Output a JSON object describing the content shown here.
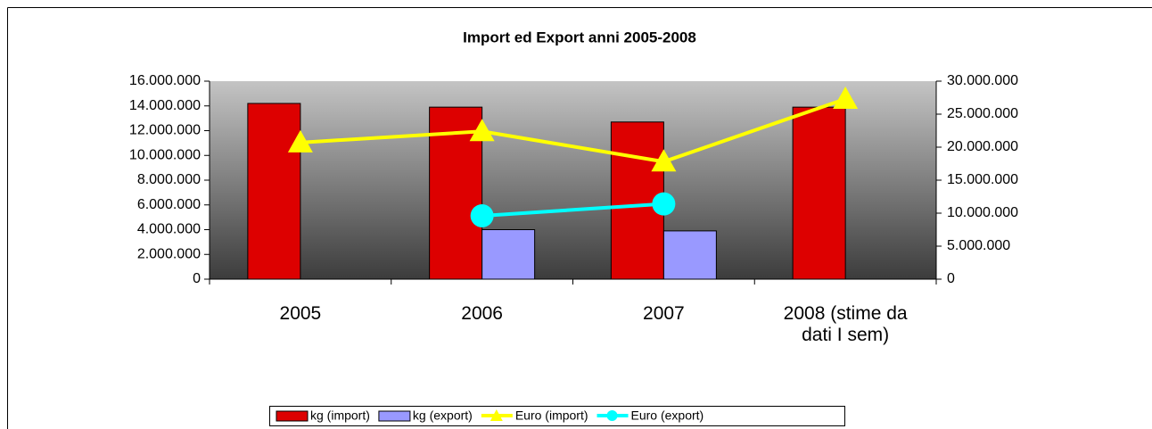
{
  "chart_data": {
    "type": "bar_line",
    "title": "Import ed Export anni 2005-2008",
    "categories": [
      "2005",
      "2006",
      "2007",
      "2008 (stime da dati I sem)"
    ],
    "series": [
      {
        "name": "kg (import)",
        "color": "#dd0000",
        "kind": "bar",
        "values": [
          14200000,
          13900000,
          12700000,
          13900000
        ]
      },
      {
        "name": "kg (export)",
        "color": "#9999ff",
        "kind": "bar",
        "values": [
          null,
          4000000,
          3900000,
          null
        ]
      },
      {
        "name": "Euro (import)",
        "color": "#ffff00",
        "kind": "line",
        "marker": "triangle",
        "axis": "y2",
        "values": [
          20700000,
          22400000,
          17800000,
          27300000
        ]
      },
      {
        "name": "Euro (export)",
        "color": "#00ffff",
        "kind": "line",
        "marker": "circle",
        "axis": "y2",
        "values": [
          null,
          9600000,
          11400000,
          null
        ]
      }
    ],
    "ylim": [
      0,
      16000000
    ],
    "yticks": [
      0,
      {
        "value": 2000000,
        "label": "2.000.000"
      },
      {
        "value": 4000000,
        "label": "4.000.000"
      },
      {
        "value": 6000000,
        "label": "6.000.000"
      },
      {
        "value": 8000000,
        "label": "8.000.000"
      },
      {
        "value": 10000000,
        "label": "10.000.000"
      },
      {
        "value": 12000000,
        "label": "12.000.000"
      },
      {
        "value": 14000000,
        "label": "14.000.000"
      },
      {
        "value": 16000000,
        "label": "16.000.000"
      }
    ],
    "y2lim": [
      0,
      30000000
    ],
    "y2ticks": [
      0,
      {
        "value": 5000000,
        "label": "5.000.000"
      },
      {
        "value": 10000000,
        "label": "10.000.000"
      },
      {
        "value": 15000000,
        "label": "15.000.000"
      },
      {
        "value": 20000000,
        "label": "20.000.000"
      },
      {
        "value": 25000000,
        "label": "25.000.000"
      },
      {
        "value": 30000000,
        "label": "30.000.000"
      }
    ],
    "legend": "bottom"
  }
}
